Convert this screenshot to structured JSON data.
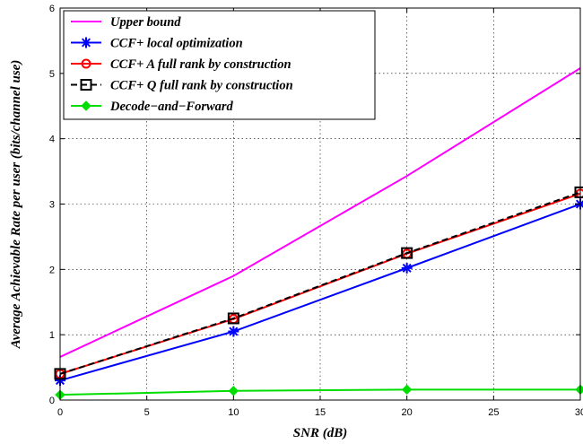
{
  "chart_data": {
    "type": "line",
    "xlabel": "SNR (dB)",
    "ylabel": "Average Achievable Rate per user (bits/channel use)",
    "xlim": [
      0,
      30
    ],
    "ylim": [
      0,
      6
    ],
    "xticks": [
      0,
      5,
      10,
      15,
      20,
      25,
      30
    ],
    "yticks": [
      0,
      1,
      2,
      3,
      4,
      5,
      6
    ],
    "grid": true,
    "legend_position": "top-left",
    "series": [
      {
        "name": "Upper bound",
        "color": "#ff00ff",
        "marker": "none",
        "dash": "solid",
        "x": [
          0,
          10,
          20,
          30
        ],
        "y": [
          0.66,
          1.9,
          3.43,
          5.08
        ]
      },
      {
        "name": "CCF+ local optimization",
        "color": "#0000ff",
        "marker": "asterisk",
        "dash": "solid",
        "x": [
          0,
          10,
          20,
          30
        ],
        "y": [
          0.3,
          1.05,
          2.02,
          3.0
        ]
      },
      {
        "name": "CCF+ A full rank by construction",
        "color": "#ff0000",
        "marker": "circle",
        "dash": "solid",
        "x": [
          0,
          10,
          20,
          30
        ],
        "y": [
          0.4,
          1.24,
          2.24,
          3.16
        ]
      },
      {
        "name": "CCF+ Q full rank by construction",
        "color": "#000000",
        "marker": "square",
        "dash": "dashed",
        "x": [
          0,
          10,
          20,
          30
        ],
        "y": [
          0.4,
          1.25,
          2.25,
          3.18
        ]
      },
      {
        "name": "Decode−and−Forward",
        "color": "#00dd00",
        "marker": "diamond",
        "dash": "solid",
        "x": [
          0,
          10,
          20,
          30
        ],
        "y": [
          0.08,
          0.14,
          0.16,
          0.16
        ]
      }
    ]
  }
}
